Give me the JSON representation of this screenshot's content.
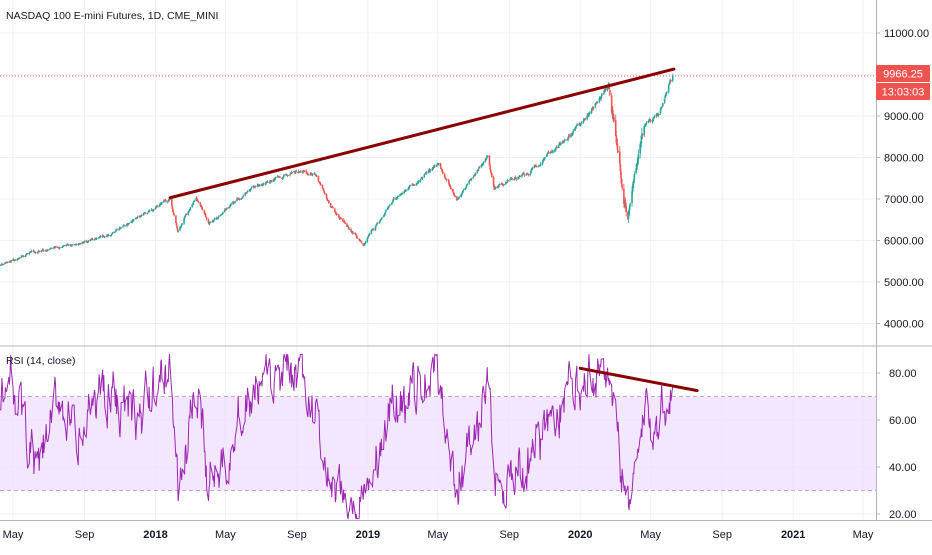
{
  "header": {
    "symbol_title": "NASDAQ 100 E-mini Futures, 1D, CME_MINI",
    "rsi_title": "RSI (14, close)"
  },
  "price_badge": {
    "price": "9966.25",
    "countdown": "13:03:03"
  },
  "colors": {
    "up": "#26a69a",
    "down": "#ef5350",
    "trendline": "#8b0000",
    "rsi_line": "#9c27b0",
    "rsi_band": "#f0e0ff",
    "price_line": "#ef5350",
    "badge": "#ef5350",
    "grid": "#eef0f4",
    "axis_text": "#131722"
  },
  "chart_data": [
    {
      "type": "candlestick",
      "title": "NASDAQ 100 E-mini Futures, 1D, CME_MINI",
      "y_ticks": [
        "4000.00",
        "5000.00",
        "6000.00",
        "7000.00",
        "8000.00",
        "9000.00",
        "10000.00",
        "11000.00"
      ],
      "y_tick_values": [
        4000,
        5000,
        6000,
        7000,
        8000,
        9000,
        10000,
        11000
      ],
      "ylim": [
        3500,
        11500
      ],
      "last_price": 9966.25,
      "path_knots": [
        {
          "x": "2017-04-01",
          "y": 5350
        },
        {
          "x": "2017-06-01",
          "y": 5700
        },
        {
          "x": "2017-08-15",
          "y": 5900
        },
        {
          "x": "2017-10-15",
          "y": 6150
        },
        {
          "x": "2018-01-26",
          "y": 7000
        },
        {
          "x": "2018-02-08",
          "y": 6250
        },
        {
          "x": "2018-03-12",
          "y": 7100
        },
        {
          "x": "2018-04-02",
          "y": 6400
        },
        {
          "x": "2018-06-20",
          "y": 7300
        },
        {
          "x": "2018-08-30",
          "y": 7650
        },
        {
          "x": "2018-10-01",
          "y": 7600
        },
        {
          "x": "2018-10-30",
          "y": 6800
        },
        {
          "x": "2018-12-24",
          "y": 5900
        },
        {
          "x": "2019-02-15",
          "y": 7000
        },
        {
          "x": "2019-05-03",
          "y": 7850
        },
        {
          "x": "2019-06-03",
          "y": 6950
        },
        {
          "x": "2019-07-26",
          "y": 8050
        },
        {
          "x": "2019-08-06",
          "y": 7300
        },
        {
          "x": "2019-10-03",
          "y": 7600
        },
        {
          "x": "2019-12-31",
          "y": 8750
        },
        {
          "x": "2020-02-19",
          "y": 9750
        },
        {
          "x": "2020-03-16",
          "y": 7000
        },
        {
          "x": "2020-03-23",
          "y": 6650
        },
        {
          "x": "2020-04-20",
          "y": 8800
        },
        {
          "x": "2020-05-13",
          "y": 9000
        },
        {
          "x": "2020-06-08",
          "y": 9966
        }
      ],
      "trendline": [
        {
          "x": "2018-01-26",
          "y": 7030
        },
        {
          "x": "2020-06-10",
          "y": 10130
        }
      ]
    },
    {
      "type": "line",
      "title": "RSI (14, close)",
      "y_ticks": [
        "20.00",
        "40.00",
        "60.00",
        "80.00"
      ],
      "y_tick_values": [
        20,
        40,
        60,
        80
      ],
      "ylim": [
        16,
        90
      ],
      "band": [
        30,
        70
      ],
      "series": [
        {
          "values_knots": [
            {
              "x": "2017-04-01",
              "y": 60
            },
            {
              "x": "2017-05-01",
              "y": 78
            },
            {
              "x": "2017-06-12",
              "y": 35
            },
            {
              "x": "2017-07-20",
              "y": 72
            },
            {
              "x": "2017-08-20",
              "y": 45
            },
            {
              "x": "2017-10-01",
              "y": 76
            },
            {
              "x": "2017-12-01",
              "y": 58
            },
            {
              "x": "2018-01-26",
              "y": 84
            },
            {
              "x": "2018-02-08",
              "y": 30
            },
            {
              "x": "2018-03-12",
              "y": 68
            },
            {
              "x": "2018-04-02",
              "y": 35
            },
            {
              "x": "2018-06-20",
              "y": 72
            },
            {
              "x": "2018-08-30",
              "y": 78
            },
            {
              "x": "2018-10-01",
              "y": 62
            },
            {
              "x": "2018-10-30",
              "y": 26
            },
            {
              "x": "2018-12-24",
              "y": 22
            },
            {
              "x": "2019-02-15",
              "y": 68
            },
            {
              "x": "2019-05-03",
              "y": 78
            },
            {
              "x": "2019-06-03",
              "y": 30
            },
            {
              "x": "2019-07-26",
              "y": 74
            },
            {
              "x": "2019-08-06",
              "y": 35
            },
            {
              "x": "2019-10-03",
              "y": 40
            },
            {
              "x": "2019-12-31",
              "y": 80
            },
            {
              "x": "2020-02-19",
              "y": 82
            },
            {
              "x": "2020-03-16",
              "y": 30
            },
            {
              "x": "2020-03-23",
              "y": 26
            },
            {
              "x": "2020-04-20",
              "y": 58
            },
            {
              "x": "2020-05-13",
              "y": 60
            },
            {
              "x": "2020-06-08",
              "y": 75
            }
          ]
        }
      ],
      "trendline": [
        {
          "x": "2020-01-01",
          "y": 82
        },
        {
          "x": "2020-07-20",
          "y": 72.5
        }
      ]
    }
  ],
  "x_axis": {
    "ticks": [
      {
        "label": "May",
        "x": "2017-05-01",
        "bold": false
      },
      {
        "label": "Sep",
        "x": "2017-09-01",
        "bold": false
      },
      {
        "label": "2018",
        "x": "2018-01-01",
        "bold": true
      },
      {
        "label": "May",
        "x": "2018-05-01",
        "bold": false
      },
      {
        "label": "Sep",
        "x": "2018-09-01",
        "bold": false
      },
      {
        "label": "2019",
        "x": "2019-01-01",
        "bold": true
      },
      {
        "label": "May",
        "x": "2019-05-01",
        "bold": false
      },
      {
        "label": "Sep",
        "x": "2019-09-01",
        "bold": false
      },
      {
        "label": "2020",
        "x": "2020-01-01",
        "bold": true
      },
      {
        "label": "May",
        "x": "2020-05-01",
        "bold": false
      },
      {
        "label": "Sep",
        "x": "2020-09-01",
        "bold": false
      },
      {
        "label": "2021",
        "x": "2021-01-01",
        "bold": true
      },
      {
        "label": "May",
        "x": "2021-05-01",
        "bold": false
      }
    ]
  }
}
